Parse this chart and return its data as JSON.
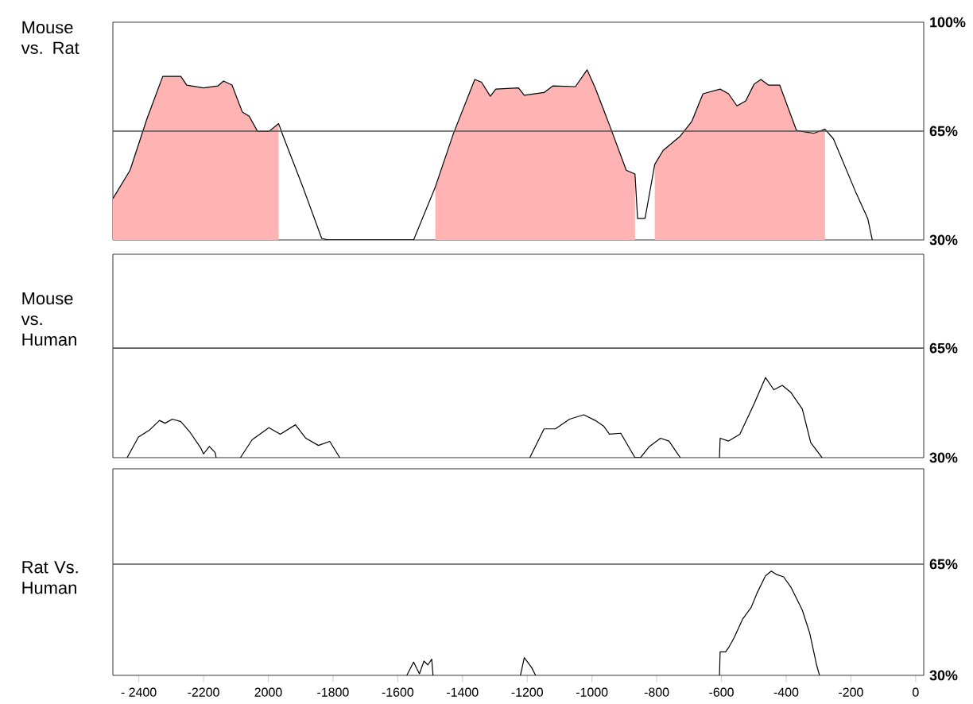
{
  "chart_data": [
    {
      "type": "line",
      "ylabel": "Mouse vs. Rat",
      "xlim": [
        -2480,
        25
      ],
      "ylim": [
        30,
        100
      ],
      "yticks": [
        {
          "value": 30,
          "label": "30%"
        },
        {
          "value": 65,
          "label": "65%"
        },
        {
          "value": 100,
          "label": "100%"
        }
      ],
      "tick_labels": "y",
      "ref_lines": [
        {
          "axis": "y",
          "value": 65,
          "color": "#555555"
        }
      ],
      "series": [
        {
          "type": "area",
          "color": "#ffb3b3",
          "x": [
            -2480,
            -2427,
            -2375,
            -2326,
            -2270,
            -2252,
            -2200,
            -2156,
            -2138,
            -2112,
            -2080,
            -2059,
            -2033,
            -1998,
            -1968
          ],
          "values": [
            43.3,
            52.4,
            68.9,
            82.6,
            82.6,
            79.8,
            78.9,
            79.5,
            81.1,
            79.8,
            71.1,
            69.8,
            64.9,
            64.9,
            67.4
          ]
        },
        {
          "type": "area",
          "color": "#ffb3b3",
          "x": [
            -1484,
            -1428,
            -1362,
            -1341,
            -1314,
            -1297,
            -1227,
            -1209,
            -1148,
            -1121,
            -1051,
            -1015,
            -990,
            -946,
            -894,
            -867
          ],
          "values": [
            47,
            64.2,
            81.6,
            80.7,
            76.2,
            78.5,
            78.9,
            76.5,
            77.4,
            79.5,
            79.3,
            84.7,
            78.9,
            67,
            52.4,
            51.2
          ]
        },
        {
          "type": "area",
          "color": "#ffb3b3",
          "x": [
            -806,
            -780,
            -727,
            -692,
            -657,
            -604,
            -578,
            -552,
            -525,
            -499,
            -478,
            -455,
            -420,
            -368,
            -315,
            -280
          ],
          "values": [
            54.3,
            58.8,
            63.4,
            68,
            77,
            78.5,
            77,
            73.1,
            74.7,
            80.1,
            81.6,
            79.8,
            79.8,
            65.2,
            64.3,
            65.6
          ]
        },
        {
          "type": "line",
          "color": "#000000",
          "x": [
            -2480,
            -2427,
            -2375,
            -2326,
            -2270,
            -2252,
            -2200,
            -2156,
            -2138,
            -2112,
            -2080,
            -2059,
            -2033,
            -1998,
            -1968,
            -1954,
            -1893,
            -1835,
            -1814,
            -1551,
            -1484,
            -1428,
            -1362,
            -1341,
            -1314,
            -1297,
            -1227,
            -1209,
            -1148,
            -1121,
            -1051,
            -1015,
            -990,
            -946,
            -894,
            -867,
            -859,
            -836,
            -806,
            -780,
            -727,
            -692,
            -657,
            -604,
            -578,
            -552,
            -525,
            -499,
            -478,
            -455,
            -420,
            -368,
            -315,
            -280,
            -254,
            -184,
            -148,
            -134
          ],
          "values": [
            43.3,
            52.4,
            68.9,
            82.6,
            82.6,
            79.8,
            78.9,
            79.5,
            81.1,
            79.8,
            71.1,
            69.8,
            64.9,
            64.9,
            67.4,
            63.4,
            47,
            30.5,
            30,
            30,
            47,
            64.2,
            81.6,
            80.7,
            76.2,
            78.5,
            78.9,
            76.5,
            77.4,
            79.5,
            79.3,
            84.7,
            78.9,
            67,
            52.4,
            51.2,
            36.9,
            36.9,
            54.3,
            58.8,
            63.4,
            68,
            77,
            78.5,
            77,
            73.1,
            74.7,
            80.1,
            81.6,
            79.8,
            79.8,
            65.2,
            64.3,
            65.6,
            62.5,
            45.1,
            36.9,
            30
          ]
        }
      ]
    },
    {
      "type": "line",
      "ylabel": "Mouse vs. Human",
      "xlim": [
        -2480,
        25
      ],
      "ylim": [
        30,
        95
      ],
      "yticks": [
        {
          "value": 30,
          "label": "30%"
        },
        {
          "value": 65,
          "label": "65%"
        }
      ],
      "tick_labels": "y",
      "ref_lines": [
        {
          "axis": "y",
          "value": 65,
          "color": "#555555"
        }
      ],
      "series": [
        {
          "type": "line",
          "color": "#000000",
          "x": [
            -2436,
            -2401,
            -2366,
            -2336,
            -2319,
            -2296,
            -2270,
            -2243,
            -2208,
            -2200,
            -2182,
            -2164,
            -2161,
            -2120,
            -2086,
            -2050,
            -1998,
            -1963,
            -1916,
            -1884,
            -1845,
            -1810,
            -1779,
            -1400,
            -1192,
            -1148,
            -1113,
            -1069,
            -1025,
            -990,
            -964,
            -946,
            -911,
            -867,
            -850,
            -824,
            -788,
            -762,
            -727,
            -650,
            -606,
            -604,
            -578,
            -543,
            -499,
            -464,
            -438,
            -412,
            -385,
            -350,
            -324,
            -289
          ],
          "values": [
            30,
            36.6,
            38.9,
            41.9,
            41,
            42.3,
            41.5,
            38.3,
            33,
            31.2,
            33.6,
            31.6,
            30,
            null,
            30,
            35.7,
            39.6,
            37.5,
            40.5,
            36.2,
            33.9,
            35.2,
            30,
            null,
            30,
            39.2,
            39.2,
            42.3,
            43.7,
            41.9,
            40.1,
            37.5,
            37.8,
            30,
            30,
            33.4,
            36.2,
            35.3,
            30,
            null,
            30,
            36.2,
            35.3,
            37.5,
            47.2,
            55.6,
            51.7,
            53.1,
            50.8,
            45.5,
            34.8,
            30
          ]
        }
      ]
    },
    {
      "type": "line",
      "ylabel": "Rat Vs. Human",
      "xlim": [
        -2480,
        25
      ],
      "ylim": [
        30,
        95
      ],
      "yticks": [
        {
          "value": 30,
          "label": "30%"
        },
        {
          "value": 65,
          "label": "65%"
        }
      ],
      "xticks": [
        {
          "value": -2400,
          "label": "- 2400"
        },
        -2200,
        {
          "value": -2000,
          "label": "2000"
        },
        -1800,
        -1600,
        -1400,
        -1200,
        -1000,
        -800,
        -600,
        -400,
        -200,
        0
      ],
      "ref_lines": [
        {
          "axis": "y",
          "value": 65,
          "color": "#555555"
        }
      ],
      "series": [
        {
          "type": "line",
          "color": "#000000",
          "x": [
            -1572,
            -1551,
            -1533,
            -1519,
            -1507,
            -1495,
            -1491,
            -1400,
            -1221,
            -1209,
            -1186,
            -1174,
            -900,
            -606,
            -604,
            -587,
            -578,
            -561,
            -534,
            -508,
            -490,
            -464,
            -446,
            -429,
            -408,
            -385,
            -350,
            -327,
            -306,
            -297
          ],
          "values": [
            30,
            34.2,
            30.5,
            34.5,
            33.3,
            35.1,
            30,
            null,
            30,
            35.6,
            32.4,
            30,
            null,
            30,
            37.4,
            37.4,
            38.7,
            41.8,
            47.8,
            51.4,
            55.9,
            61.3,
            62.8,
            61.7,
            61,
            57.7,
            50.5,
            43.2,
            33.3,
            30
          ]
        }
      ]
    }
  ]
}
